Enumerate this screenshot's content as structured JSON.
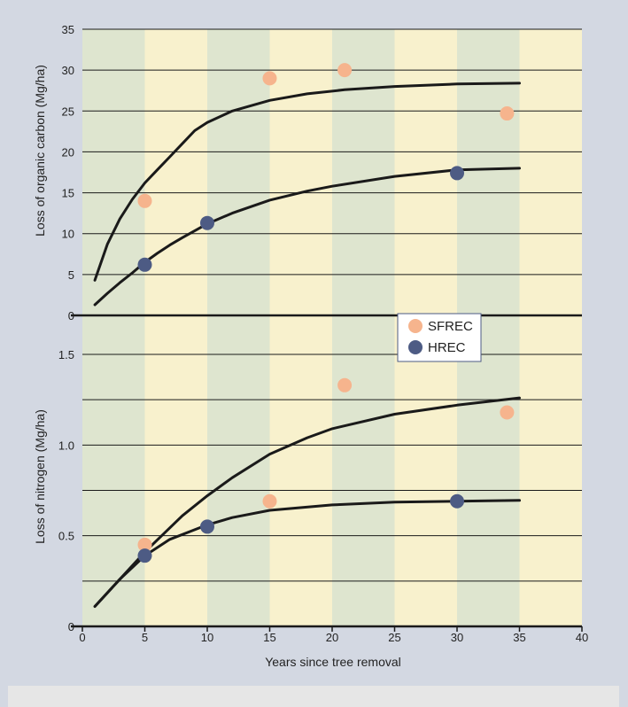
{
  "colors": {
    "background": "#d3d8e2",
    "footer_band": "#e6e6e6",
    "band_green": "#dee5cf",
    "band_yellow": "#f8f1cd",
    "sfrec": "#f6b48d",
    "hrec": "#4d5b84",
    "curve": "#1a1a1a",
    "gridline": "#1a1a1a"
  },
  "legend": {
    "position": "center",
    "items": [
      {
        "label": "SFREC",
        "color": "#f6b48d"
      },
      {
        "label": "HREC",
        "color": "#4d5b84"
      }
    ]
  },
  "chart_data": [
    {
      "type": "scatter",
      "panel": "top",
      "ylabel": "Loss of organic carbon (Mg/ha)",
      "xlabel": "",
      "xlim": [
        0,
        40
      ],
      "ylim": [
        0,
        35
      ],
      "yticks": [
        0,
        5,
        10,
        15,
        20,
        25,
        30,
        35
      ],
      "ytick_labels": [
        "0",
        "5",
        "10",
        "15",
        "20",
        "25",
        "30",
        "35"
      ],
      "grid": true,
      "series": [
        {
          "name": "SFREC",
          "color": "#f6b48d",
          "points": [
            {
              "x": 5,
              "y": 14
            },
            {
              "x": 15,
              "y": 29
            },
            {
              "x": 21,
              "y": 30
            },
            {
              "x": 34,
              "y": 24.7
            }
          ],
          "fit": [
            [
              1,
              4.3
            ],
            [
              2,
              8.7
            ],
            [
              3,
              11.8
            ],
            [
              4,
              14.2
            ],
            [
              5,
              16.2
            ],
            [
              6,
              17.8
            ],
            [
              7,
              19.4
            ],
            [
              8,
              21.0
            ],
            [
              9,
              22.6
            ],
            [
              10,
              23.6
            ],
            [
              12,
              25.0
            ],
            [
              15,
              26.3
            ],
            [
              18,
              27.1
            ],
            [
              21,
              27.6
            ],
            [
              25,
              28.0
            ],
            [
              30,
              28.3
            ],
            [
              35,
              28.4
            ]
          ]
        },
        {
          "name": "HREC",
          "color": "#4d5b84",
          "points": [
            {
              "x": 5,
              "y": 6.2
            },
            {
              "x": 10,
              "y": 11.3
            },
            {
              "x": 30,
              "y": 17.4
            }
          ],
          "fit": [
            [
              1,
              1.3
            ],
            [
              2,
              2.7
            ],
            [
              3,
              4.0
            ],
            [
              4,
              5.2
            ],
            [
              5,
              6.5
            ],
            [
              6,
              7.6
            ],
            [
              7,
              8.6
            ],
            [
              8,
              9.5
            ],
            [
              10,
              11.2
            ],
            [
              12,
              12.5
            ],
            [
              15,
              14.1
            ],
            [
              18,
              15.2
            ],
            [
              20,
              15.8
            ],
            [
              25,
              17.0
            ],
            [
              30,
              17.8
            ],
            [
              35,
              18.0
            ]
          ]
        }
      ]
    },
    {
      "type": "scatter",
      "panel": "bottom",
      "ylabel": "Loss of nitrogen (Mg/ha)",
      "xlabel": "Years since tree removal",
      "xlim": [
        0,
        40
      ],
      "ylim": [
        0,
        1.5
      ],
      "xticks": [
        0,
        5,
        10,
        15,
        20,
        25,
        30,
        35,
        40
      ],
      "xtick_labels": [
        "0",
        "5",
        "10",
        "15",
        "20",
        "25",
        "30",
        "35",
        "40"
      ],
      "yticks": [
        0,
        0.5,
        1.0,
        1.5
      ],
      "ytick_labels": [
        "0",
        "0.5",
        "1.0",
        "1.5"
      ],
      "gridlines": [
        0,
        0.25,
        0.5,
        0.75,
        1.0,
        1.25,
        1.5
      ],
      "grid": true,
      "series": [
        {
          "name": "SFREC",
          "color": "#f6b48d",
          "points": [
            {
              "x": 5,
              "y": 0.45
            },
            {
              "x": 15,
              "y": 0.69
            },
            {
              "x": 21,
              "y": 1.33
            },
            {
              "x": 34,
              "y": 1.18
            }
          ],
          "fit": [
            [
              1,
              0.11
            ],
            [
              3,
              0.26
            ],
            [
              5,
              0.41
            ],
            [
              8,
              0.61
            ],
            [
              10,
              0.72
            ],
            [
              12,
              0.82
            ],
            [
              15,
              0.95
            ],
            [
              18,
              1.04
            ],
            [
              20,
              1.09
            ],
            [
              25,
              1.17
            ],
            [
              30,
              1.22
            ],
            [
              35,
              1.26
            ]
          ]
        },
        {
          "name": "HREC",
          "color": "#4d5b84",
          "points": [
            {
              "x": 5,
              "y": 0.39
            },
            {
              "x": 10,
              "y": 0.55
            },
            {
              "x": 30,
              "y": 0.69
            }
          ],
          "fit": [
            [
              1,
              0.11
            ],
            [
              3,
              0.26
            ],
            [
              5,
              0.39
            ],
            [
              7,
              0.48
            ],
            [
              10,
              0.56
            ],
            [
              12,
              0.6
            ],
            [
              15,
              0.64
            ],
            [
              20,
              0.67
            ],
            [
              25,
              0.685
            ],
            [
              30,
              0.69
            ],
            [
              35,
              0.695
            ]
          ]
        }
      ]
    }
  ]
}
